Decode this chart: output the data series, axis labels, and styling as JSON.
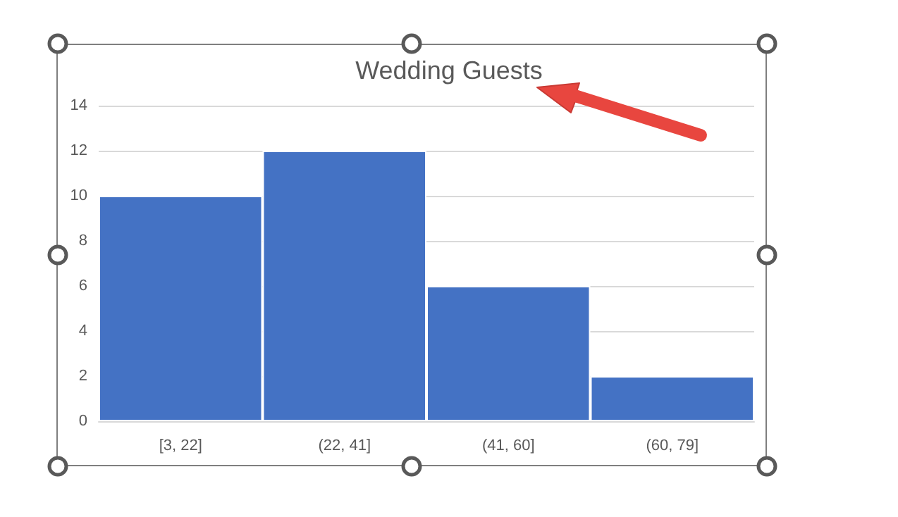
{
  "chart_data": {
    "type": "bar",
    "title": "Wedding Guests",
    "categories": [
      "[3, 22]",
      "(22, 41]",
      "(41, 60]",
      "(60, 79]"
    ],
    "values": [
      10,
      12,
      6,
      2
    ],
    "color": "#4472c4",
    "ylim": [
      0,
      14
    ],
    "yticks": [
      0,
      2,
      4,
      6,
      8,
      10,
      12,
      14
    ],
    "grid": true
  }
}
